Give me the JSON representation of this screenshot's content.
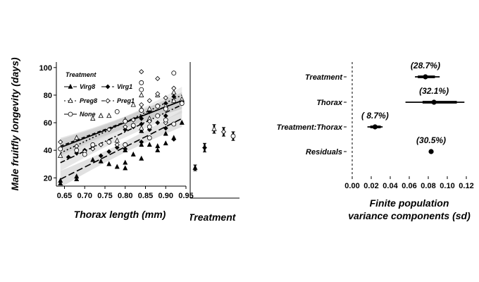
{
  "chart_data": [
    {
      "type": "scatter",
      "xlabel": "Thorax length (mm)",
      "ylabel": "Male fruitfly longevity (days)",
      "xlim": [
        0.63,
        0.95
      ],
      "ylim": [
        14,
        104
      ],
      "x_ticks": [
        "0.65",
        "0.70",
        "0.75",
        "0.80",
        "0.85",
        "0.90",
        "0.95"
      ],
      "x_tick_values": [
        0.65,
        0.7,
        0.75,
        0.8,
        0.85,
        0.9,
        0.95
      ],
      "y_ticks": [
        "20",
        "40",
        "60",
        "80",
        "100"
      ],
      "y_tick_values": [
        20,
        40,
        60,
        80,
        100
      ],
      "legend_title": "Treatment",
      "legend_position": "top-left",
      "grid": false,
      "series": [
        {
          "name": "Virg8",
          "marker": "triangle-filled",
          "line": "longdash",
          "fit": [
            [
              0.64,
              19
            ],
            [
              0.94,
              63
            ]
          ],
          "points": [
            [
              0.64,
              16
            ],
            [
              0.64,
              18
            ],
            [
              0.68,
              19
            ],
            [
              0.68,
              21
            ],
            [
              0.72,
              33
            ],
            [
              0.74,
              32
            ],
            [
              0.76,
              30
            ],
            [
              0.78,
              28
            ],
            [
              0.8,
              27
            ],
            [
              0.8,
              31
            ],
            [
              0.8,
              40
            ],
            [
              0.82,
              37
            ],
            [
              0.84,
              34
            ],
            [
              0.84,
              44
            ],
            [
              0.84,
              54
            ],
            [
              0.86,
              44
            ],
            [
              0.88,
              40
            ],
            [
              0.88,
              43
            ],
            [
              0.9,
              45
            ],
            [
              0.9,
              52
            ],
            [
              0.92,
              49
            ],
            [
              0.94,
              60
            ]
          ]
        },
        {
          "name": "Virg1",
          "marker": "diamond-filled",
          "line": "dotdash",
          "fit": [
            [
              0.64,
              31
            ],
            [
              0.94,
              73
            ]
          ],
          "points": [
            [
              0.66,
              35
            ],
            [
              0.68,
              38
            ],
            [
              0.7,
              40
            ],
            [
              0.72,
              43
            ],
            [
              0.74,
              36
            ],
            [
              0.76,
              39
            ],
            [
              0.78,
              42
            ],
            [
              0.8,
              41
            ],
            [
              0.8,
              55
            ],
            [
              0.82,
              57
            ],
            [
              0.84,
              46
            ],
            [
              0.84,
              59
            ],
            [
              0.84,
              63
            ],
            [
              0.86,
              55
            ],
            [
              0.86,
              68
            ],
            [
              0.88,
              60
            ],
            [
              0.88,
              72
            ],
            [
              0.9,
              56
            ],
            [
              0.9,
              65
            ],
            [
              0.9,
              74
            ],
            [
              0.92,
              48
            ],
            [
              0.92,
              79
            ]
          ]
        },
        {
          "name": "Preg8",
          "marker": "triangle-open",
          "line": "dotted",
          "fit": [
            [
              0.64,
              38
            ],
            [
              0.94,
              80
            ]
          ],
          "points": [
            [
              0.64,
              36
            ],
            [
              0.68,
              49
            ],
            [
              0.72,
              63
            ],
            [
              0.74,
              65
            ],
            [
              0.76,
              65
            ],
            [
              0.78,
              47
            ],
            [
              0.8,
              62
            ],
            [
              0.82,
              73
            ],
            [
              0.84,
              56
            ],
            [
              0.84,
              70
            ],
            [
              0.84,
              80
            ],
            [
              0.86,
              70
            ],
            [
              0.86,
              63
            ],
            [
              0.88,
              80
            ],
            [
              0.9,
              72
            ],
            [
              0.92,
              82
            ],
            [
              0.92,
              76
            ],
            [
              0.94,
              77
            ]
          ]
        },
        {
          "name": "Preg1",
          "marker": "diamond-open",
          "line": "dashed",
          "fit": [
            [
              0.64,
              43
            ],
            [
              0.94,
              76
            ]
          ],
          "points": [
            [
              0.64,
              46
            ],
            [
              0.68,
              43
            ],
            [
              0.7,
              39
            ],
            [
              0.72,
              41
            ],
            [
              0.74,
              44
            ],
            [
              0.76,
              55
            ],
            [
              0.78,
              44
            ],
            [
              0.8,
              57
            ],
            [
              0.82,
              62
            ],
            [
              0.84,
              97
            ],
            [
              0.84,
              73
            ],
            [
              0.86,
              61
            ],
            [
              0.86,
              76
            ],
            [
              0.88,
              92
            ],
            [
              0.88,
              81
            ],
            [
              0.9,
              78
            ],
            [
              0.9,
              60
            ],
            [
              0.92,
              96
            ],
            [
              0.92,
              85
            ],
            [
              0.94,
              75
            ]
          ]
        },
        {
          "name": "None",
          "marker": "circle-open",
          "line": "solid",
          "fit": [
            [
              0.64,
              42
            ],
            [
              0.94,
              76
            ]
          ],
          "points": [
            [
              0.64,
              41
            ],
            [
              0.68,
              40
            ],
            [
              0.7,
              37
            ],
            [
              0.72,
              44
            ],
            [
              0.76,
              46
            ],
            [
              0.78,
              68
            ],
            [
              0.8,
              44
            ],
            [
              0.8,
              61
            ],
            [
              0.82,
              58
            ],
            [
              0.84,
              69
            ],
            [
              0.84,
              89
            ],
            [
              0.84,
              84
            ],
            [
              0.86,
              49
            ],
            [
              0.86,
              57
            ],
            [
              0.88,
              65
            ],
            [
              0.88,
              72
            ],
            [
              0.9,
              62
            ],
            [
              0.9,
              70
            ],
            [
              0.92,
              59
            ],
            [
              0.92,
              96
            ],
            [
              0.94,
              74
            ]
          ]
        }
      ]
    },
    {
      "type": "scatter",
      "xlabel": "Treatment",
      "ylim": [
        14,
        104
      ],
      "groups": [
        {
          "mean": 35,
          "lo": 33,
          "hi": 37
        },
        {
          "mean": 49,
          "lo": 46,
          "hi": 52
        },
        {
          "mean": 62,
          "lo": 59,
          "hi": 65
        },
        {
          "mean": 60,
          "lo": 57,
          "hi": 63
        },
        {
          "mean": 57,
          "lo": 54,
          "hi": 60
        }
      ]
    },
    {
      "type": "scatter",
      "xlabel": "Finite population\nvariance components (sd)",
      "xlabel_lines": [
        "Finite population",
        "variance components (sd)"
      ],
      "xlim": [
        0.0,
        0.12
      ],
      "x_ticks": [
        "0.00",
        "0.02",
        "0.04",
        "0.06",
        "0.08",
        "0.10",
        "0.12"
      ],
      "x_tick_values": [
        0.0,
        0.02,
        0.04,
        0.06,
        0.08,
        0.1,
        0.12
      ],
      "reference_line": 0,
      "components": [
        {
          "name": "Treatment",
          "estimate": 0.077,
          "inner": [
            0.069,
            0.087
          ],
          "outer": [
            0.066,
            0.092
          ],
          "label": "(28.7%)"
        },
        {
          "name": "Thorax",
          "estimate": 0.086,
          "inner": [
            0.074,
            0.11
          ],
          "outer": [
            0.056,
            0.118
          ],
          "label": "(32.1%)"
        },
        {
          "name": "Treatment:Thorax",
          "estimate": 0.024,
          "inner": [
            0.019,
            0.03
          ],
          "outer": [
            0.016,
            0.032
          ],
          "label": "( 8.7%)"
        },
        {
          "name": "Residuals",
          "estimate": 0.083,
          "inner": [
            0.082,
            0.084
          ],
          "outer": [
            0.082,
            0.084
          ],
          "label": "(30.5%)"
        }
      ]
    }
  ]
}
